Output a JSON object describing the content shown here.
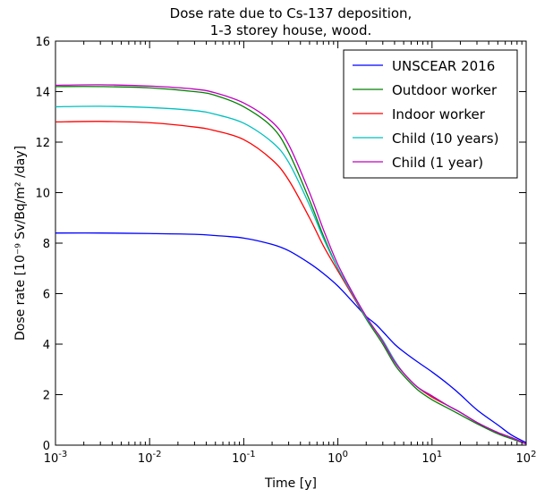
{
  "chart_data": {
    "type": "line",
    "title": [
      "Dose rate due to Cs-137 deposition,",
      "1-3 storey house, wood."
    ],
    "xlabel": "Time [y]",
    "ylabel": "Dose rate [10⁻⁹ Sv/Bq/m² /day]",
    "xscale": "log",
    "xlim": [
      0.001,
      100
    ],
    "ylim": [
      0,
      16
    ],
    "grid": false,
    "legend_placement": "top-right",
    "x_ticks": [
      {
        "value": 0.001,
        "base": "10",
        "exp": "-3"
      },
      {
        "value": 0.01,
        "base": "10",
        "exp": "-2"
      },
      {
        "value": 0.1,
        "base": "10",
        "exp": "-1"
      },
      {
        "value": 1,
        "base": "10",
        "exp": "0"
      },
      {
        "value": 10,
        "base": "10",
        "exp": "1"
      },
      {
        "value": 100,
        "base": "10",
        "exp": "2"
      }
    ],
    "y_ticks": [
      {
        "value": 0,
        "label": "0"
      },
      {
        "value": 2,
        "label": "2"
      },
      {
        "value": 4,
        "label": "4"
      },
      {
        "value": 6,
        "label": "6"
      },
      {
        "value": 8,
        "label": "8"
      },
      {
        "value": 10,
        "label": "10"
      },
      {
        "value": 12,
        "label": "12"
      },
      {
        "value": 14,
        "label": "14"
      },
      {
        "value": 16,
        "label": "16"
      }
    ],
    "x": [
      0.001,
      0.003,
      0.01,
      0.03,
      0.05,
      0.1,
      0.2,
      0.3,
      0.5,
      0.7,
      1,
      1.5,
      2,
      2.5,
      3,
      4,
      5,
      7,
      10,
      15,
      20,
      30,
      50,
      70,
      100
    ],
    "series": [
      {
        "name": "UNSCEAR 2016",
        "color": "#0000ff",
        "values": [
          8.4,
          8.4,
          8.38,
          8.35,
          8.3,
          8.2,
          7.95,
          7.7,
          7.2,
          6.8,
          6.3,
          5.6,
          5.1,
          4.8,
          4.5,
          4.0,
          3.7,
          3.3,
          2.9,
          2.4,
          2.0,
          1.4,
          0.8,
          0.4,
          0.1
        ]
      },
      {
        "name": "Outdoor worker",
        "color": "#008000",
        "values": [
          14.2,
          14.2,
          14.15,
          14.0,
          13.85,
          13.4,
          12.6,
          11.6,
          9.7,
          8.3,
          7.0,
          5.8,
          5.0,
          4.45,
          4.0,
          3.2,
          2.75,
          2.2,
          1.8,
          1.45,
          1.2,
          0.85,
          0.45,
          0.25,
          0.05
        ]
      },
      {
        "name": "Indoor worker",
        "color": "#ff0000",
        "values": [
          12.8,
          12.82,
          12.77,
          12.6,
          12.45,
          12.1,
          11.3,
          10.5,
          9.0,
          7.9,
          6.9,
          5.8,
          5.05,
          4.55,
          4.15,
          3.35,
          2.85,
          2.3,
          1.9,
          1.55,
          1.3,
          0.9,
          0.5,
          0.3,
          0.05
        ]
      },
      {
        "name": "Child (10 years)",
        "color": "#00bfbf",
        "values": [
          13.4,
          13.42,
          13.37,
          13.25,
          13.1,
          12.75,
          12.0,
          11.2,
          9.5,
          8.2,
          7.0,
          5.85,
          5.05,
          4.55,
          4.15,
          3.35,
          2.85,
          2.3,
          1.95,
          1.55,
          1.3,
          0.9,
          0.5,
          0.3,
          0.05
        ]
      },
      {
        "name": "Child (1 year)",
        "color": "#bf00bf",
        "values": [
          14.25,
          14.27,
          14.22,
          14.1,
          13.95,
          13.55,
          12.8,
          11.9,
          10.0,
          8.55,
          7.15,
          5.9,
          5.1,
          4.55,
          4.1,
          3.3,
          2.85,
          2.3,
          1.95,
          1.55,
          1.3,
          0.9,
          0.5,
          0.3,
          0.05
        ]
      }
    ]
  }
}
